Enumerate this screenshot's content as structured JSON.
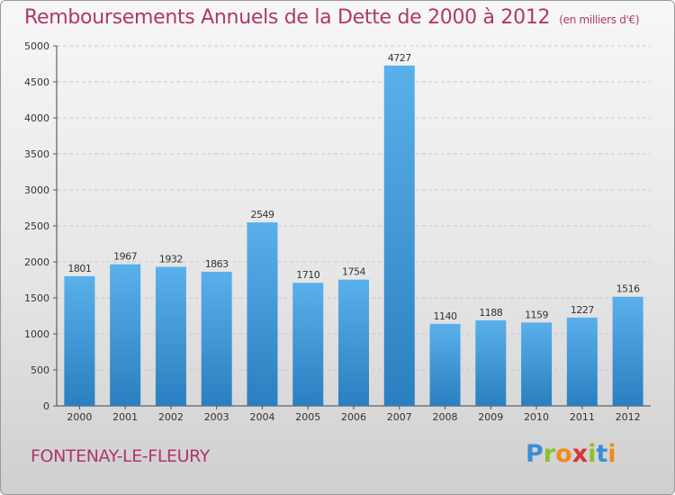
{
  "title": "Remboursements Annuels de la Dette de 2000 à 2012",
  "title_unit": "(en milliers d'€)",
  "commune": "FONTENAY-LE-FLEURY",
  "logo_text": "Proxiti",
  "colors": {
    "bar_light": "#5ab0ea",
    "bar_dark": "#2a7fc0",
    "title": "#b0366b"
  },
  "chart_data": {
    "type": "bar",
    "title": "Remboursements Annuels de la Dette de 2000 à 2012",
    "categories": [
      "2000",
      "2001",
      "2002",
      "2003",
      "2004",
      "2005",
      "2006",
      "2007",
      "2008",
      "2009",
      "2010",
      "2011",
      "2012"
    ],
    "values": [
      1801,
      1967,
      1932,
      1863,
      2549,
      1710,
      1754,
      4727,
      1140,
      1188,
      1159,
      1227,
      1516
    ],
    "ylim": [
      0,
      5000
    ],
    "yticks": [
      0,
      500,
      1000,
      1500,
      2000,
      2500,
      3000,
      3500,
      4000,
      4500,
      5000
    ],
    "grid": true,
    "data_labels": true
  }
}
